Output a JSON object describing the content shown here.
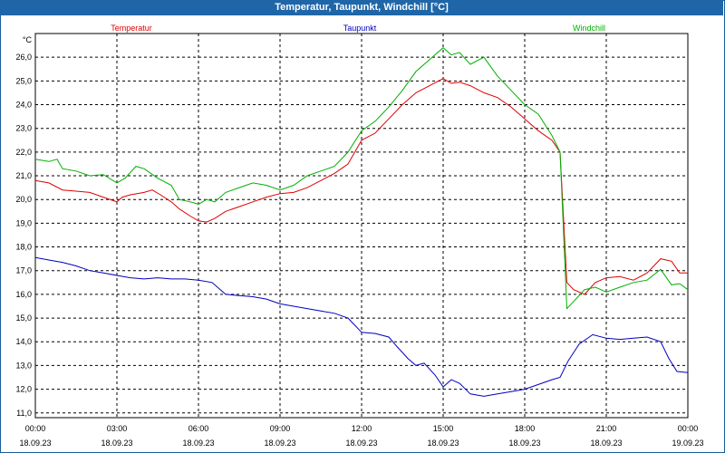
{
  "window_title": "Temperatur, Taupunkt, Windchill [°C]",
  "chart_data": {
    "type": "line",
    "title": "Temperatur, Taupunkt, Windchill [°C]",
    "ylabel": "°C",
    "xlabel": "",
    "ylim": [
      10.8,
      27.0
    ],
    "y_ticks": [
      "11,0",
      "12,0",
      "13,0",
      "14,0",
      "15,0",
      "16,0",
      "17,0",
      "18,0",
      "19,0",
      "20,0",
      "21,0",
      "22,0",
      "23,0",
      "24,0",
      "25,0",
      "26,0"
    ],
    "y_tick_values": [
      11,
      12,
      13,
      14,
      15,
      16,
      17,
      18,
      19,
      20,
      21,
      22,
      23,
      24,
      25,
      26
    ],
    "xlim": [
      0,
      24
    ],
    "x_ticks": [
      {
        "time": "00:00",
        "date": "18.09.23",
        "hour": 0
      },
      {
        "time": "03:00",
        "date": "18.09.23",
        "hour": 3
      },
      {
        "time": "06:00",
        "date": "18.09.23",
        "hour": 6
      },
      {
        "time": "09:00",
        "date": "18.09.23",
        "hour": 9
      },
      {
        "time": "12:00",
        "date": "18.09.23",
        "hour": 12
      },
      {
        "time": "15:00",
        "date": "18.09.23",
        "hour": 15
      },
      {
        "time": "18:00",
        "date": "18.09.23",
        "hour": 18
      },
      {
        "time": "21:00",
        "date": "18.09.23",
        "hour": 21
      },
      {
        "time": "00:00",
        "date": "19.09.23",
        "hour": 24
      }
    ],
    "grid": true,
    "series": [
      {
        "name": "Temperatur",
        "color": "#e00000",
        "points": [
          [
            0,
            20.8
          ],
          [
            0.5,
            20.7
          ],
          [
            1,
            20.4
          ],
          [
            1.5,
            20.35
          ],
          [
            2,
            20.3
          ],
          [
            2.5,
            20.1
          ],
          [
            3,
            19.9
          ],
          [
            3.2,
            20.1
          ],
          [
            3.5,
            20.2
          ],
          [
            4,
            20.3
          ],
          [
            4.3,
            20.4
          ],
          [
            4.6,
            20.2
          ],
          [
            5,
            19.9
          ],
          [
            5.3,
            19.6
          ],
          [
            5.7,
            19.3
          ],
          [
            6,
            19.1
          ],
          [
            6.3,
            19.05
          ],
          [
            6.6,
            19.2
          ],
          [
            7,
            19.5
          ],
          [
            7.5,
            19.7
          ],
          [
            8,
            19.9
          ],
          [
            8.5,
            20.1
          ],
          [
            9,
            20.25
          ],
          [
            9.5,
            20.3
          ],
          [
            10,
            20.5
          ],
          [
            10.5,
            20.8
          ],
          [
            11,
            21.1
          ],
          [
            11.5,
            21.5
          ],
          [
            12,
            22.5
          ],
          [
            12.5,
            22.8
          ],
          [
            13,
            23.4
          ],
          [
            13.5,
            24.0
          ],
          [
            14,
            24.5
          ],
          [
            14.5,
            24.8
          ],
          [
            15,
            25.1
          ],
          [
            15.3,
            24.9
          ],
          [
            15.6,
            24.95
          ],
          [
            16,
            24.8
          ],
          [
            16.5,
            24.5
          ],
          [
            17,
            24.3
          ],
          [
            17.5,
            23.9
          ],
          [
            18,
            23.4
          ],
          [
            18.5,
            22.9
          ],
          [
            19,
            22.5
          ],
          [
            19.3,
            22.0
          ],
          [
            19.55,
            16.5
          ],
          [
            19.8,
            16.2
          ],
          [
            20.2,
            16.0
          ],
          [
            20.6,
            16.5
          ],
          [
            21,
            16.7
          ],
          [
            21.5,
            16.75
          ],
          [
            22,
            16.6
          ],
          [
            22.5,
            16.9
          ],
          [
            23,
            17.5
          ],
          [
            23.4,
            17.4
          ],
          [
            23.7,
            16.9
          ],
          [
            24,
            16.9
          ]
        ]
      },
      {
        "name": "Taupunkt",
        "color": "#0000c0",
        "points": [
          [
            0,
            17.55
          ],
          [
            0.5,
            17.45
          ],
          [
            1,
            17.35
          ],
          [
            1.5,
            17.2
          ],
          [
            2,
            17.0
          ],
          [
            2.5,
            16.9
          ],
          [
            3,
            16.8
          ],
          [
            3.5,
            16.7
          ],
          [
            4,
            16.65
          ],
          [
            4.5,
            16.7
          ],
          [
            5,
            16.65
          ],
          [
            5.5,
            16.65
          ],
          [
            6,
            16.6
          ],
          [
            6.5,
            16.5
          ],
          [
            7,
            16.0
          ],
          [
            7.5,
            15.95
          ],
          [
            8,
            15.9
          ],
          [
            8.5,
            15.8
          ],
          [
            9,
            15.6
          ],
          [
            9.5,
            15.5
          ],
          [
            10,
            15.4
          ],
          [
            10.5,
            15.3
          ],
          [
            11,
            15.2
          ],
          [
            11.5,
            15.0
          ],
          [
            12,
            14.4
          ],
          [
            12.5,
            14.35
          ],
          [
            13,
            14.2
          ],
          [
            13.3,
            13.8
          ],
          [
            13.7,
            13.3
          ],
          [
            14,
            13.0
          ],
          [
            14.3,
            13.1
          ],
          [
            14.7,
            12.6
          ],
          [
            15,
            12.1
          ],
          [
            15.3,
            12.4
          ],
          [
            15.6,
            12.25
          ],
          [
            16,
            11.8
          ],
          [
            16.5,
            11.7
          ],
          [
            17,
            11.8
          ],
          [
            17.5,
            11.9
          ],
          [
            18,
            12.0
          ],
          [
            18.5,
            12.2
          ],
          [
            19,
            12.4
          ],
          [
            19.3,
            12.5
          ],
          [
            19.6,
            13.2
          ],
          [
            20,
            13.9
          ],
          [
            20.5,
            14.3
          ],
          [
            21,
            14.15
          ],
          [
            21.5,
            14.1
          ],
          [
            22,
            14.15
          ],
          [
            22.5,
            14.2
          ],
          [
            23,
            14.0
          ],
          [
            23.3,
            13.3
          ],
          [
            23.6,
            12.75
          ],
          [
            24,
            12.7
          ]
        ]
      },
      {
        "name": "Windchill",
        "color": "#00b000",
        "points": [
          [
            0,
            21.7
          ],
          [
            0.5,
            21.6
          ],
          [
            0.8,
            21.7
          ],
          [
            1,
            21.3
          ],
          [
            1.5,
            21.2
          ],
          [
            2,
            21.0
          ],
          [
            2.5,
            21.05
          ],
          [
            3,
            20.7
          ],
          [
            3.3,
            20.9
          ],
          [
            3.7,
            21.4
          ],
          [
            4,
            21.3
          ],
          [
            4.5,
            20.9
          ],
          [
            5,
            20.6
          ],
          [
            5.3,
            20.0
          ],
          [
            5.7,
            19.9
          ],
          [
            6,
            19.8
          ],
          [
            6.3,
            20.0
          ],
          [
            6.6,
            19.9
          ],
          [
            7,
            20.3
          ],
          [
            7.5,
            20.5
          ],
          [
            8,
            20.7
          ],
          [
            8.5,
            20.6
          ],
          [
            9,
            20.4
          ],
          [
            9.5,
            20.6
          ],
          [
            10,
            21.0
          ],
          [
            10.5,
            21.2
          ],
          [
            11,
            21.4
          ],
          [
            11.5,
            22.0
          ],
          [
            12,
            22.9
          ],
          [
            12.5,
            23.3
          ],
          [
            13,
            23.9
          ],
          [
            13.5,
            24.6
          ],
          [
            14,
            25.4
          ],
          [
            14.5,
            25.9
          ],
          [
            15,
            26.4
          ],
          [
            15.3,
            26.1
          ],
          [
            15.6,
            26.2
          ],
          [
            16,
            25.7
          ],
          [
            16.5,
            26.0
          ],
          [
            17,
            25.2
          ],
          [
            17.5,
            24.6
          ],
          [
            18,
            24.0
          ],
          [
            18.5,
            23.6
          ],
          [
            19,
            22.7
          ],
          [
            19.3,
            22.0
          ],
          [
            19.55,
            15.4
          ],
          [
            19.8,
            15.7
          ],
          [
            20.2,
            16.2
          ],
          [
            20.6,
            16.3
          ],
          [
            21,
            16.1
          ],
          [
            21.5,
            16.3
          ],
          [
            22,
            16.5
          ],
          [
            22.5,
            16.6
          ],
          [
            23,
            17.05
          ],
          [
            23.4,
            16.4
          ],
          [
            23.7,
            16.45
          ],
          [
            24,
            16.2
          ]
        ]
      }
    ]
  }
}
